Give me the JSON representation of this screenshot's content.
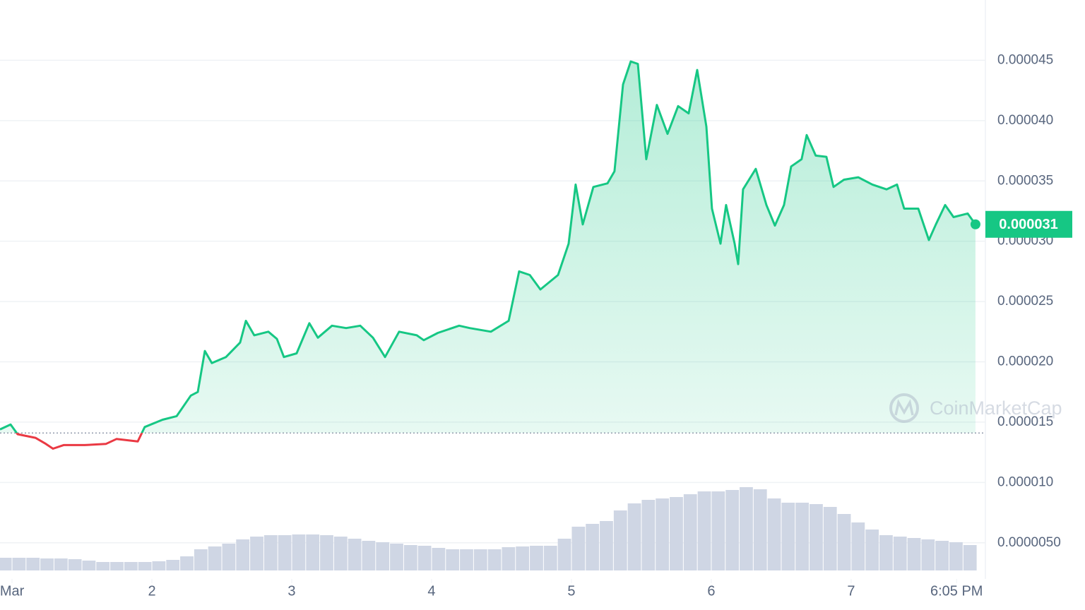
{
  "chart_data": {
    "type": "line",
    "x": [
      0.914,
      0.99,
      1.04,
      1.167,
      1.242,
      1.293,
      1.369,
      1.52,
      1.672,
      1.747,
      1.899,
      1.949,
      2.076,
      2.177,
      2.278,
      2.328,
      2.379,
      2.429,
      2.53,
      2.631,
      2.672,
      2.732,
      2.833,
      2.894,
      2.944,
      3.035,
      3.126,
      3.187,
      3.288,
      3.389,
      3.49,
      3.581,
      3.667,
      3.768,
      3.894,
      3.944,
      4.045,
      4.197,
      4.273,
      4.424,
      4.551,
      4.626,
      4.702,
      4.778,
      4.904,
      4.98,
      5.03,
      5.081,
      5.157,
      5.258,
      5.308,
      5.369,
      5.424,
      5.475,
      5.535,
      5.611,
      5.687,
      5.763,
      5.838,
      5.899,
      5.965,
      6.005,
      6.066,
      6.106,
      6.167,
      6.192,
      6.227,
      6.318,
      6.394,
      6.455,
      6.52,
      6.571,
      6.646,
      6.682,
      6.747,
      6.823,
      6.874,
      6.949,
      7.051,
      7.152,
      7.253,
      7.328,
      7.379,
      7.48,
      7.556,
      7.606,
      7.672,
      7.732,
      7.833,
      7.889
    ],
    "series": [
      {
        "color": "#16c784",
        "below_color": "#ea3943",
        "values": [
          1.44e-05,
          1.48e-05,
          1.4e-05,
          1.37e-05,
          1.32e-05,
          1.28e-05,
          1.31e-05,
          1.31e-05,
          1.32e-05,
          1.36e-05,
          1.34e-05,
          1.46e-05,
          1.52e-05,
          1.55e-05,
          1.72e-05,
          1.75e-05,
          2.09e-05,
          1.99e-05,
          2.04e-05,
          2.16e-05,
          2.34e-05,
          2.22e-05,
          2.25e-05,
          2.19e-05,
          2.04e-05,
          2.07e-05,
          2.32e-05,
          2.2e-05,
          2.3e-05,
          2.28e-05,
          2.3e-05,
          2.2e-05,
          2.04e-05,
          2.25e-05,
          2.22e-05,
          2.18e-05,
          2.24e-05,
          2.3e-05,
          2.28e-05,
          2.25e-05,
          2.34e-05,
          2.75e-05,
          2.72e-05,
          2.6e-05,
          2.72e-05,
          2.98e-05,
          3.47e-05,
          3.14e-05,
          3.45e-05,
          3.48e-05,
          3.58e-05,
          4.3e-05,
          4.49e-05,
          4.47e-05,
          3.68e-05,
          4.13e-05,
          3.89e-05,
          4.12e-05,
          4.06e-05,
          4.42e-05,
          3.95e-05,
          3.27e-05,
          2.98e-05,
          3.3e-05,
          2.98e-05,
          2.81e-05,
          3.43e-05,
          3.6e-05,
          3.3e-05,
          3.13e-05,
          3.3e-05,
          3.62e-05,
          3.68e-05,
          3.88e-05,
          3.71e-05,
          3.7e-05,
          3.45e-05,
          3.51e-05,
          3.53e-05,
          3.47e-05,
          3.43e-05,
          3.47e-05,
          3.27e-05,
          3.27e-05,
          3.01e-05,
          3.14e-05,
          3.3e-05,
          3.2e-05,
          3.23e-05,
          3.14e-05
        ]
      }
    ],
    "baseline": 1.41e-05,
    "current_price": {
      "value": 3.14e-05,
      "label": "0.000031"
    },
    "volume": {
      "color": "#cfd6e4",
      "ylim": [
        0,
        800
      ],
      "x": [
        0.95,
        1.05,
        1.15,
        1.25,
        1.35,
        1.45,
        1.55,
        1.65,
        1.75,
        1.85,
        1.95,
        2.05,
        2.15,
        2.25,
        2.35,
        2.45,
        2.55,
        2.65,
        2.75,
        2.85,
        2.95,
        3.05,
        3.15,
        3.25,
        3.35,
        3.45,
        3.55,
        3.65,
        3.75,
        3.85,
        3.95,
        4.05,
        4.15,
        4.25,
        4.35,
        4.45,
        4.55,
        4.65,
        4.75,
        4.85,
        4.95,
        5.05,
        5.15,
        5.25,
        5.35,
        5.45,
        5.55,
        5.65,
        5.75,
        5.85,
        5.95,
        6.05,
        6.15,
        6.25,
        6.35,
        6.45,
        6.55,
        6.65,
        6.75,
        6.85,
        6.95,
        7.05,
        7.15,
        7.25,
        7.35,
        7.45,
        7.55,
        7.65,
        7.75,
        7.85
      ],
      "values": [
        18,
        18,
        18,
        17,
        17,
        16,
        14,
        12,
        12,
        12,
        12,
        13,
        15,
        20,
        30,
        34,
        38,
        44,
        48,
        50,
        50,
        51,
        51,
        50,
        48,
        45,
        42,
        40,
        38,
        36,
        35,
        32,
        30,
        30,
        30,
        30,
        33,
        34,
        35,
        35,
        45,
        62,
        66,
        70,
        85,
        95,
        100,
        102,
        104,
        108,
        112,
        112,
        114,
        118,
        115,
        102,
        96,
        96,
        94,
        90,
        80,
        68,
        58,
        50,
        48,
        46,
        44,
        42,
        40,
        36
      ]
    },
    "xlim": [
      0.914,
      7.96
    ],
    "xticks": [
      {
        "value": 1,
        "label": "Mar"
      },
      2,
      3,
      4,
      5,
      6,
      7,
      {
        "value": 7.754,
        "label": "6:05 PM"
      }
    ],
    "ylim": [
      2e-06,
      5e-05
    ],
    "yticks": [
      {
        "value": 5e-06,
        "label": "0.0000050"
      },
      {
        "value": 1e-05,
        "label": "0.000010"
      },
      {
        "value": 1.5e-05,
        "label": "0.000015"
      },
      {
        "value": 2e-05,
        "label": "0.000020"
      },
      {
        "value": 2.5e-05,
        "label": "0.000025"
      },
      {
        "value": 3e-05,
        "label": "0.000030"
      },
      {
        "value": 3.5e-05,
        "label": "0.000035"
      },
      {
        "value": 4e-05,
        "label": "0.000040"
      },
      {
        "value": 4.5e-05,
        "label": "0.000045"
      }
    ],
    "grid": true,
    "watermark": "CoinMarketCap"
  }
}
